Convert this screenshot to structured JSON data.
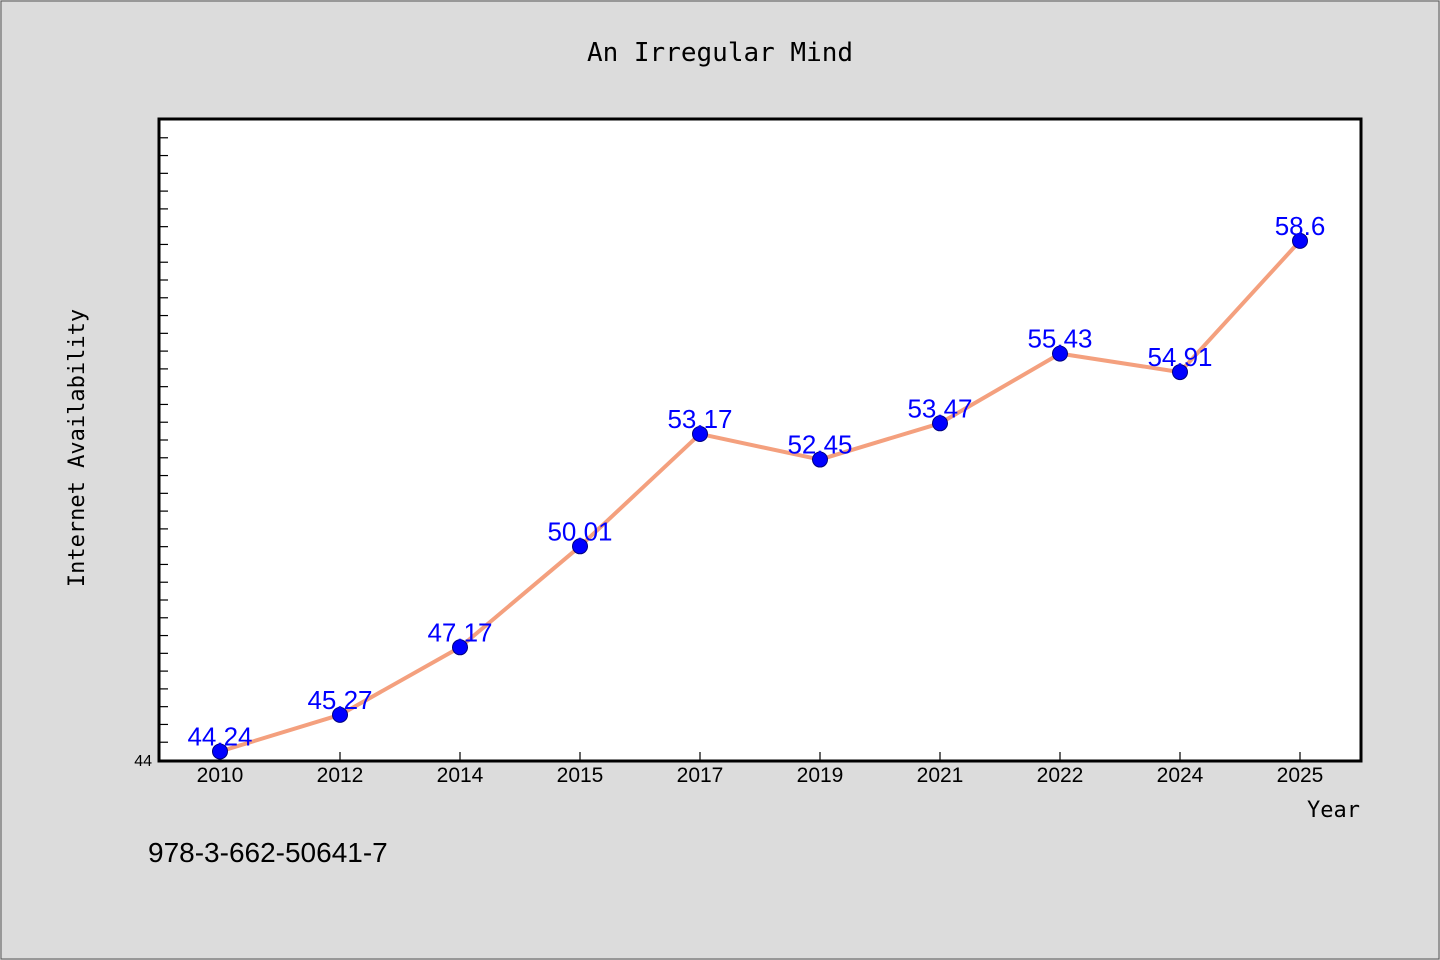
{
  "chart_data": {
    "type": "line",
    "title": "An Irregular Mind",
    "xlabel": "Year",
    "ylabel": "Internet Availability",
    "categories": [
      "2010",
      "2012",
      "2014",
      "2015",
      "2017",
      "2019",
      "2021",
      "2022",
      "2024",
      "2025"
    ],
    "series": [
      {
        "values": [
          44.24,
          45.27,
          47.17,
          50.01,
          53.17,
          52.45,
          53.47,
          55.43,
          54.91,
          58.6
        ],
        "labels": [
          "44.24",
          "45.27",
          "47.17",
          "50.01",
          "53.17",
          "52.45",
          "53.47",
          "55.43",
          "54.91",
          "58.6"
        ],
        "line_color": "#f4a07e",
        "marker_color": "#0000ff"
      }
    ],
    "ylim": [
      44,
      62
    ],
    "ytick_labels": [
      "44"
    ],
    "grid": false,
    "legend": "none"
  },
  "footer": {
    "isbn": "978-3-662-50641-7"
  },
  "colors": {
    "background": "#dcdcdc",
    "plot_area": "#ffffff",
    "label_color": "#0000ff"
  }
}
